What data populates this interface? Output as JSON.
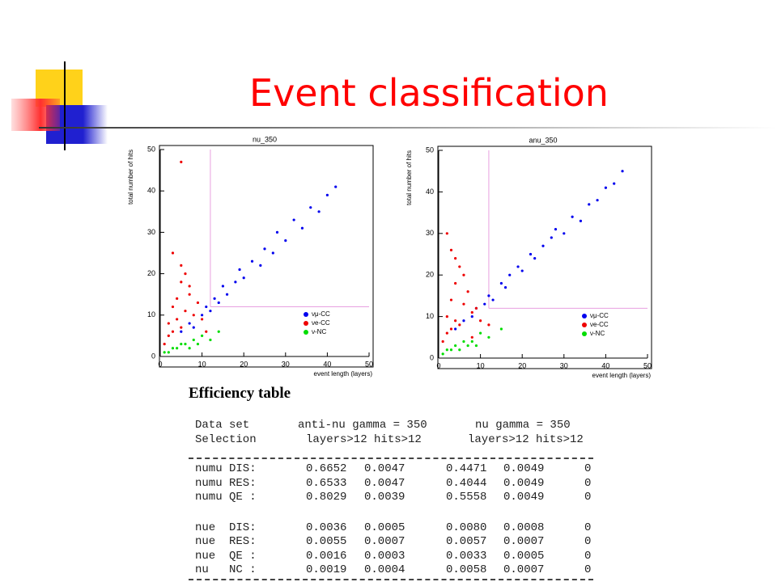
{
  "title": "Event classification",
  "chart_data": [
    {
      "type": "scatter",
      "title": "nu_350",
      "x_label": "event length (layers)",
      "y_label": "total number of hits",
      "xlim": [
        0,
        50
      ],
      "ylim": [
        0,
        50
      ],
      "xticks": [
        0,
        10,
        20,
        30,
        40,
        50
      ],
      "yticks": [
        0,
        10,
        20,
        30,
        40,
        50
      ],
      "cuts": {
        "x": 12,
        "y": 12
      },
      "cut_color": "#e8a0e0",
      "legend": "lower right",
      "series": [
        {
          "name": "νμ-CC",
          "color": "#0000ee",
          "x": [
            5,
            7,
            8,
            10,
            11,
            12,
            13,
            14,
            15,
            16,
            18,
            19,
            20,
            22,
            24,
            25,
            27,
            28,
            30,
            32,
            34,
            36,
            38,
            40,
            42
          ],
          "values": [
            6,
            8,
            7,
            10,
            12,
            11,
            14,
            13,
            17,
            15,
            18,
            21,
            19,
            23,
            22,
            26,
            25,
            30,
            28,
            33,
            31,
            36,
            35,
            39,
            41
          ]
        },
        {
          "name": "νe-CC",
          "color": "#ee0000",
          "x": [
            1,
            2,
            2,
            3,
            3,
            4,
            4,
            5,
            5,
            6,
            6,
            7,
            8,
            9,
            10,
            3,
            5,
            7,
            11,
            5
          ],
          "values": [
            3,
            5,
            8,
            6,
            12,
            9,
            14,
            7,
            18,
            11,
            20,
            15,
            10,
            13,
            9,
            25,
            22,
            17,
            6,
            47
          ]
        },
        {
          "name": "ν-NC",
          "color": "#00dd00",
          "x": [
            1,
            2,
            3,
            4,
            5,
            6,
            7,
            8,
            9,
            10,
            12,
            14
          ],
          "values": [
            1,
            1,
            2,
            2,
            3,
            3,
            2,
            4,
            3,
            5,
            4,
            6
          ]
        }
      ]
    },
    {
      "type": "scatter",
      "title": "anu_350",
      "x_label": "event length (layers)",
      "y_label": "total number of hits",
      "xlim": [
        0,
        50
      ],
      "ylim": [
        0,
        50
      ],
      "xticks": [
        0,
        10,
        20,
        30,
        40,
        50
      ],
      "yticks": [
        0,
        10,
        20,
        30,
        40,
        50
      ],
      "cuts": {
        "x": 12,
        "y": 12
      },
      "cut_color": "#e8a0e0",
      "legend": "lower right",
      "series": [
        {
          "name": "νμ-CC",
          "color": "#0000ee",
          "x": [
            4,
            6,
            8,
            9,
            11,
            12,
            13,
            15,
            16,
            17,
            19,
            20,
            22,
            23,
            25,
            27,
            28,
            30,
            32,
            34,
            36,
            38,
            40,
            42,
            44
          ],
          "values": [
            7,
            9,
            10,
            12,
            13,
            15,
            14,
            18,
            17,
            20,
            22,
            21,
            25,
            24,
            27,
            29,
            31,
            30,
            34,
            33,
            37,
            38,
            41,
            42,
            45
          ]
        },
        {
          "name": "νe-CC",
          "color": "#ee0000",
          "x": [
            1,
            2,
            2,
            3,
            3,
            4,
            4,
            5,
            5,
            6,
            7,
            8,
            9,
            10,
            12,
            3,
            4,
            6,
            8,
            2
          ],
          "values": [
            4,
            6,
            10,
            7,
            14,
            9,
            18,
            8,
            22,
            13,
            16,
            11,
            12,
            9,
            8,
            26,
            24,
            20,
            5,
            30
          ]
        },
        {
          "name": "ν-NC",
          "color": "#00dd00",
          "x": [
            1,
            2,
            3,
            4,
            5,
            6,
            7,
            8,
            9,
            10,
            12,
            15
          ],
          "values": [
            1,
            2,
            2,
            3,
            2,
            4,
            3,
            4,
            3,
            6,
            5,
            7
          ]
        }
      ]
    }
  ],
  "table": {
    "title": "Efficiency table",
    "header": [
      [
        "Data set",
        "anti-nu gamma = 350",
        "nu gamma = 350"
      ],
      [
        "Selection",
        "layers>12 hits>12",
        "layers>12 hits>12"
      ]
    ],
    "groups": [
      [
        [
          "numu DIS:",
          "0.6652",
          "0.0047",
          "0.4471",
          "0.0049",
          "0"
        ],
        [
          "numu RES:",
          "0.6533",
          "0.0047",
          "0.4044",
          "0.0049",
          "0"
        ],
        [
          "numu QE :",
          "0.8029",
          "0.0039",
          "0.5558",
          "0.0049",
          "0"
        ]
      ],
      [
        [
          "nue  DIS:",
          "0.0036",
          "0.0005",
          "0.0080",
          "0.0008",
          "0"
        ],
        [
          "nue  RES:",
          "0.0055",
          "0.0007",
          "0.0057",
          "0.0007",
          "0"
        ],
        [
          "nue  QE :",
          "0.0016",
          "0.0003",
          "0.0033",
          "0.0005",
          "0"
        ],
        [
          "nu   NC :",
          "0.0019",
          "0.0004",
          "0.0058",
          "0.0007",
          "0"
        ]
      ]
    ]
  }
}
